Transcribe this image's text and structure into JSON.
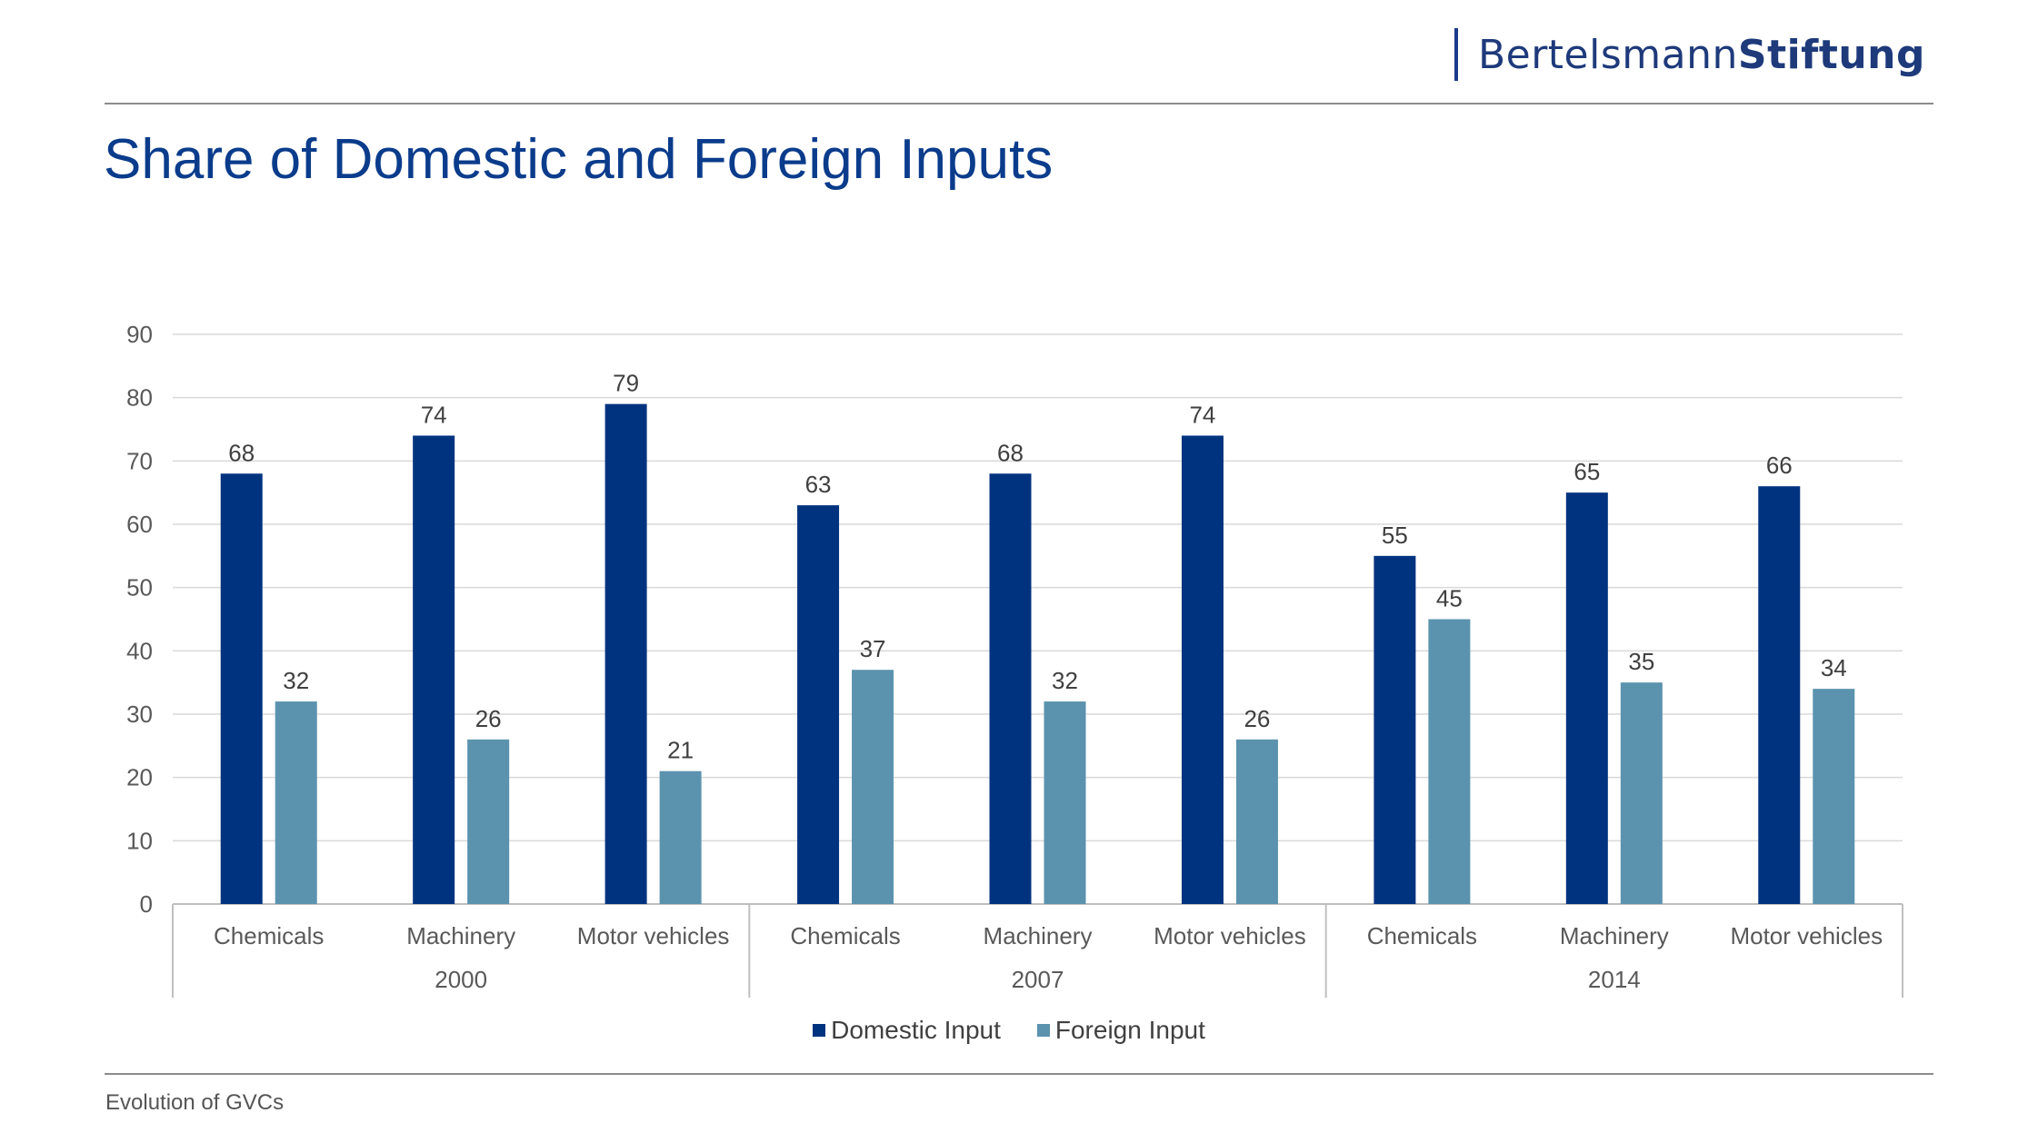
{
  "brand": {
    "regular": "Bertelsmann",
    "bold": "Stiftung"
  },
  "title": "Share of Domestic and Foreign Inputs",
  "footer": "Evolution of GVCs",
  "colors": {
    "domestic": "#00337f",
    "foreign": "#5b93ae",
    "title": "#0b3c8c",
    "grid": "#d9d9d9"
  },
  "chart_data": {
    "type": "bar",
    "title": "Share of Domestic and Foreign Inputs",
    "xlabel": "",
    "ylabel": "",
    "ylim": [
      0,
      90
    ],
    "yticks": [
      0,
      10,
      20,
      30,
      40,
      50,
      60,
      70,
      80,
      90
    ],
    "grid": true,
    "legend_position": "bottom",
    "groups": [
      {
        "label": "2000",
        "categories": [
          "Chemicals",
          "Machinery",
          "Motor vehicles"
        ]
      },
      {
        "label": "2007",
        "categories": [
          "Chemicals",
          "Machinery",
          "Motor vehicles"
        ]
      },
      {
        "label": "2014",
        "categories": [
          "Chemicals",
          "Machinery",
          "Motor vehicles"
        ]
      }
    ],
    "series": [
      {
        "name": "Domestic Input",
        "color": "#00337f",
        "values": [
          68,
          74,
          79,
          63,
          68,
          74,
          55,
          65,
          66
        ]
      },
      {
        "name": "Foreign Input",
        "color": "#5b93ae",
        "values": [
          32,
          26,
          21,
          37,
          32,
          26,
          45,
          35,
          34
        ]
      }
    ]
  }
}
